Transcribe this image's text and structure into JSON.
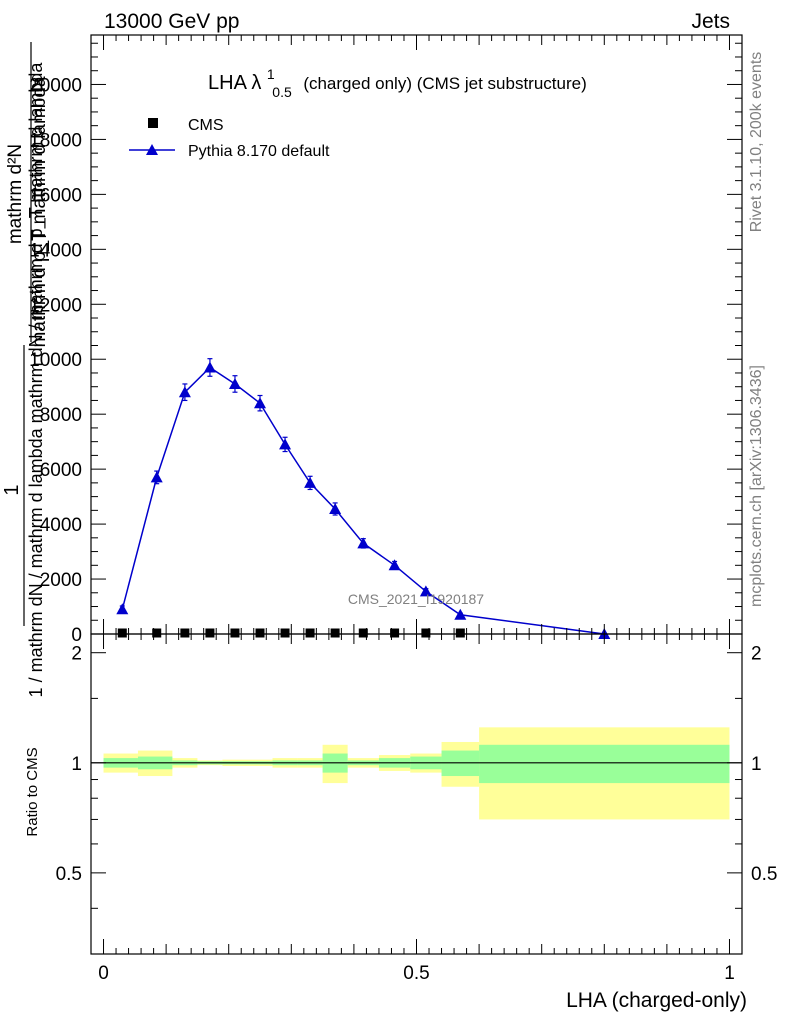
{
  "header": {
    "energy_label": "13000 GeV pp",
    "process_label": "Jets",
    "side_label_top": "Rivet 3.1.10,  200k events",
    "side_label_bottom": "mcplots.cern.ch [arXiv:1306.3436]",
    "watermark": "CMS_2021_I1920187"
  },
  "title": {
    "prefix": "LHA λ",
    "sup": "1",
    "sub": "0.5",
    "suffix": "(charged only) (CMS jet substructure)"
  },
  "colors": {
    "mc": "#0000cc",
    "data": "#000000",
    "band_inner": "#99ff99",
    "band_outer": "#ffff99"
  },
  "chart_data": [
    {
      "type": "line",
      "panel": "main",
      "ylabel": "1 / mathrm dN / mathrm d lambda mathrm dN / mathrm d p_T mathrm d lambda",
      "ylabel_lines": [
        "mathrm d²N",
        "mathrm d p_T mathrm d lambda",
        "1",
        "mathrm dN / mathrm d"
      ],
      "xlim": [
        -0.02,
        1.02
      ],
      "ylim": [
        0,
        21800
      ],
      "yticks": [
        0,
        2000,
        4000,
        6000,
        8000,
        10000,
        12000,
        14000,
        16000,
        18000,
        20000
      ],
      "ytick_labels": [
        "0",
        "2000",
        "4000",
        "6000",
        "8000",
        "10000",
        "12000",
        "14000",
        "16000",
        "18000",
        "20000"
      ],
      "legend_position": "top-left",
      "series": [
        {
          "name": "CMS",
          "marker": "square",
          "x": [
            0.03,
            0.085,
            0.13,
            0.17,
            0.21,
            0.25,
            0.29,
            0.33,
            0.37,
            0.415,
            0.465,
            0.515,
            0.57
          ],
          "y": [
            0,
            0,
            0,
            0,
            0,
            0,
            0,
            0,
            0,
            0,
            0,
            0,
            0
          ]
        },
        {
          "name": "Pythia 8.170 default",
          "marker": "triangle",
          "x": [
            0.03,
            0.085,
            0.13,
            0.17,
            0.21,
            0.25,
            0.29,
            0.33,
            0.37,
            0.415,
            0.465,
            0.515,
            0.57,
            0.8
          ],
          "y": [
            900,
            5700,
            8800,
            9700,
            9100,
            8400,
            6900,
            5500,
            4550,
            3300,
            2500,
            1550,
            700,
            0
          ],
          "yerr": [
            120,
            230,
            300,
            320,
            300,
            280,
            260,
            240,
            220,
            170,
            140,
            100,
            60,
            10
          ]
        }
      ]
    },
    {
      "type": "ratio",
      "panel": "ratio",
      "ylabel": "Ratio to CMS",
      "xlabel": "LHA (charged-only)",
      "xlim": [
        -0.02,
        1.02
      ],
      "ylim": [
        0.3,
        2.25
      ],
      "yticks": [
        0.5,
        1,
        2
      ],
      "ytick_labels": [
        "0.5",
        "1",
        "2"
      ],
      "xticks": [
        0,
        0.5,
        1
      ],
      "xtick_labels": [
        "0",
        "0.5",
        "1"
      ],
      "reference": 1,
      "bins": [
        {
          "x0": 0.0,
          "x1": 0.055,
          "inner": [
            0.97,
            1.03
          ],
          "outer": [
            0.94,
            1.06
          ]
        },
        {
          "x0": 0.055,
          "x1": 0.11,
          "inner": [
            0.96,
            1.04
          ],
          "outer": [
            0.92,
            1.08
          ]
        },
        {
          "x0": 0.11,
          "x1": 0.15,
          "inner": [
            0.985,
            1.015
          ],
          "outer": [
            0.97,
            1.03
          ]
        },
        {
          "x0": 0.15,
          "x1": 0.19,
          "inner": [
            0.99,
            1.01
          ],
          "outer": [
            0.985,
            1.015
          ]
        },
        {
          "x0": 0.19,
          "x1": 0.23,
          "inner": [
            0.99,
            1.01
          ],
          "outer": [
            0.98,
            1.02
          ]
        },
        {
          "x0": 0.23,
          "x1": 0.27,
          "inner": [
            0.99,
            1.01
          ],
          "outer": [
            0.98,
            1.02
          ]
        },
        {
          "x0": 0.27,
          "x1": 0.31,
          "inner": [
            0.985,
            1.015
          ],
          "outer": [
            0.97,
            1.03
          ]
        },
        {
          "x0": 0.31,
          "x1": 0.35,
          "inner": [
            0.985,
            1.015
          ],
          "outer": [
            0.97,
            1.03
          ]
        },
        {
          "x0": 0.35,
          "x1": 0.39,
          "inner": [
            0.94,
            1.06
          ],
          "outer": [
            0.88,
            1.12
          ]
        },
        {
          "x0": 0.39,
          "x1": 0.44,
          "inner": [
            0.985,
            1.015
          ],
          "outer": [
            0.97,
            1.03
          ]
        },
        {
          "x0": 0.44,
          "x1": 0.49,
          "inner": [
            0.97,
            1.03
          ],
          "outer": [
            0.95,
            1.05
          ]
        },
        {
          "x0": 0.49,
          "x1": 0.54,
          "inner": [
            0.96,
            1.04
          ],
          "outer": [
            0.94,
            1.06
          ]
        },
        {
          "x0": 0.54,
          "x1": 0.6,
          "inner": [
            0.92,
            1.08
          ],
          "outer": [
            0.86,
            1.14
          ]
        },
        {
          "x0": 0.6,
          "x1": 1.0,
          "inner": [
            0.88,
            1.12
          ],
          "outer": [
            0.7,
            1.25
          ]
        }
      ]
    }
  ]
}
